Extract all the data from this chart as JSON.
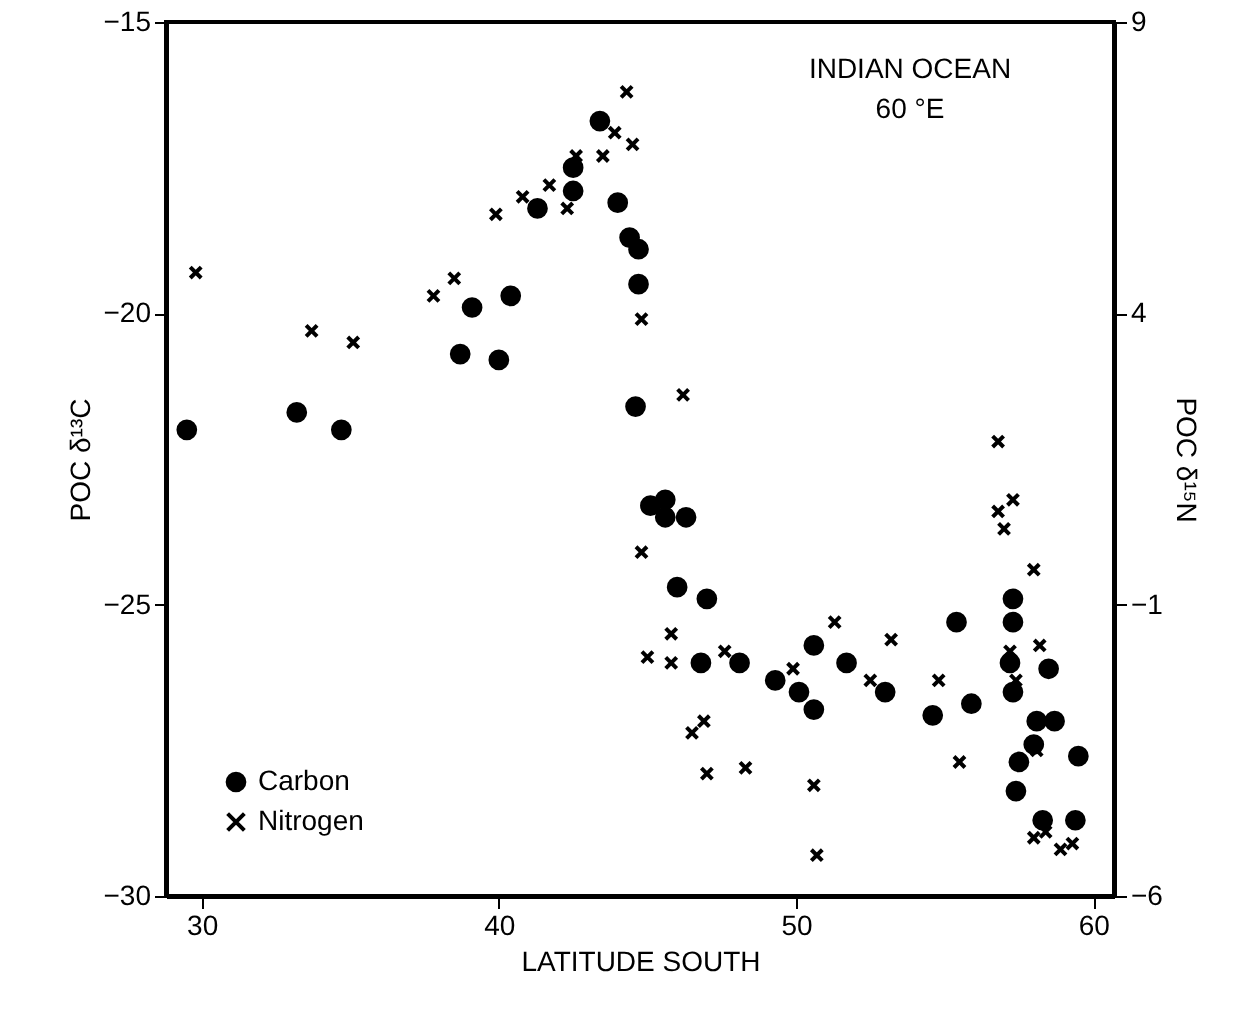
{
  "chart_data": {
    "type": "scatter",
    "xlabel": "LATITUDE SOUTH",
    "ylabel": "POC δ¹³C",
    "y2label": "POC δ¹⁵N",
    "annotations": [
      "INDIAN OCEAN",
      "60 °E"
    ],
    "xlim": [
      28.8,
      60.7
    ],
    "xticks": [
      30,
      40,
      50,
      60
    ],
    "ylim": [
      -30,
      -15
    ],
    "yticks": [
      -30,
      -25,
      -20,
      -15
    ],
    "y2lim": [
      -6,
      9
    ],
    "y2ticks": [
      -6,
      -1,
      4,
      9
    ],
    "grid": false,
    "legend": "bottom left",
    "series": [
      {
        "name": "Carbon",
        "color": "#000000",
        "marker": "circle",
        "x": [
          29.5,
          33.2,
          34.7,
          38.7,
          39.1,
          40.0,
          40.4,
          41.3,
          42.5,
          42.5,
          43.4,
          44.0,
          44.4,
          44.7,
          44.7,
          44.6,
          45.1,
          45.6,
          45.6,
          46.3,
          46.0,
          47.0,
          46.8,
          48.1,
          49.3,
          50.1,
          50.6,
          50.6,
          51.7,
          53.0,
          54.6,
          55.4,
          55.9,
          57.3,
          57.3,
          57.2,
          57.3,
          58.5,
          58.1,
          58.7,
          58.0,
          57.5,
          57.4,
          59.5,
          58.3,
          59.4
        ],
        "values": [
          -22.0,
          -21.7,
          -22.0,
          -20.7,
          -19.9,
          -20.8,
          -19.7,
          -18.2,
          -17.9,
          -17.5,
          -16.7,
          -18.1,
          -18.7,
          -18.9,
          -19.5,
          -21.6,
          -23.3,
          -23.2,
          -23.5,
          -23.5,
          -24.7,
          -24.9,
          -26.0,
          -26.0,
          -26.3,
          -26.5,
          -26.8,
          -25.7,
          -26.0,
          -26.5,
          -26.9,
          -25.3,
          -26.7,
          -24.9,
          -25.3,
          -26.0,
          -26.5,
          -26.1,
          -27.0,
          -27.0,
          -27.4,
          -27.7,
          -28.2,
          -27.6,
          -28.7,
          -28.7
        ]
      },
      {
        "name": "Nitrogen",
        "color": "#000000",
        "marker": "cross",
        "axis": "y2",
        "x": [
          29.8,
          33.7,
          35.1,
          37.8,
          38.5,
          39.9,
          40.8,
          41.7,
          42.3,
          42.6,
          43.5,
          43.9,
          44.5,
          44.3,
          44.8,
          46.2,
          56.8,
          57.3,
          56.8,
          57.0,
          58.0,
          44.8,
          45.8,
          45.0,
          45.8,
          47.6,
          46.9,
          46.5,
          47.0,
          48.3,
          49.9,
          51.3,
          50.6,
          50.7,
          52.5,
          53.2,
          54.8,
          55.5,
          57.2,
          58.2,
          57.4,
          58.1,
          58.0,
          58.9,
          59.3,
          58.4
        ],
        "values": [
          4.7,
          3.7,
          3.5,
          4.3,
          4.6,
          5.7,
          6.0,
          6.2,
          5.8,
          6.7,
          6.7,
          7.1,
          6.9,
          7.8,
          3.9,
          2.6,
          1.8,
          0.8,
          0.6,
          0.3,
          -0.4,
          -0.1,
          -1.5,
          -1.9,
          -2.0,
          -1.8,
          -3.0,
          -3.2,
          -3.9,
          -3.8,
          -2.1,
          -1.3,
          -4.1,
          -5.3,
          -2.3,
          -1.6,
          -2.3,
          -3.7,
          -1.8,
          -1.7,
          -2.3,
          -3.5,
          -5.0,
          -5.2,
          -5.1,
          -4.9
        ]
      }
    ]
  }
}
